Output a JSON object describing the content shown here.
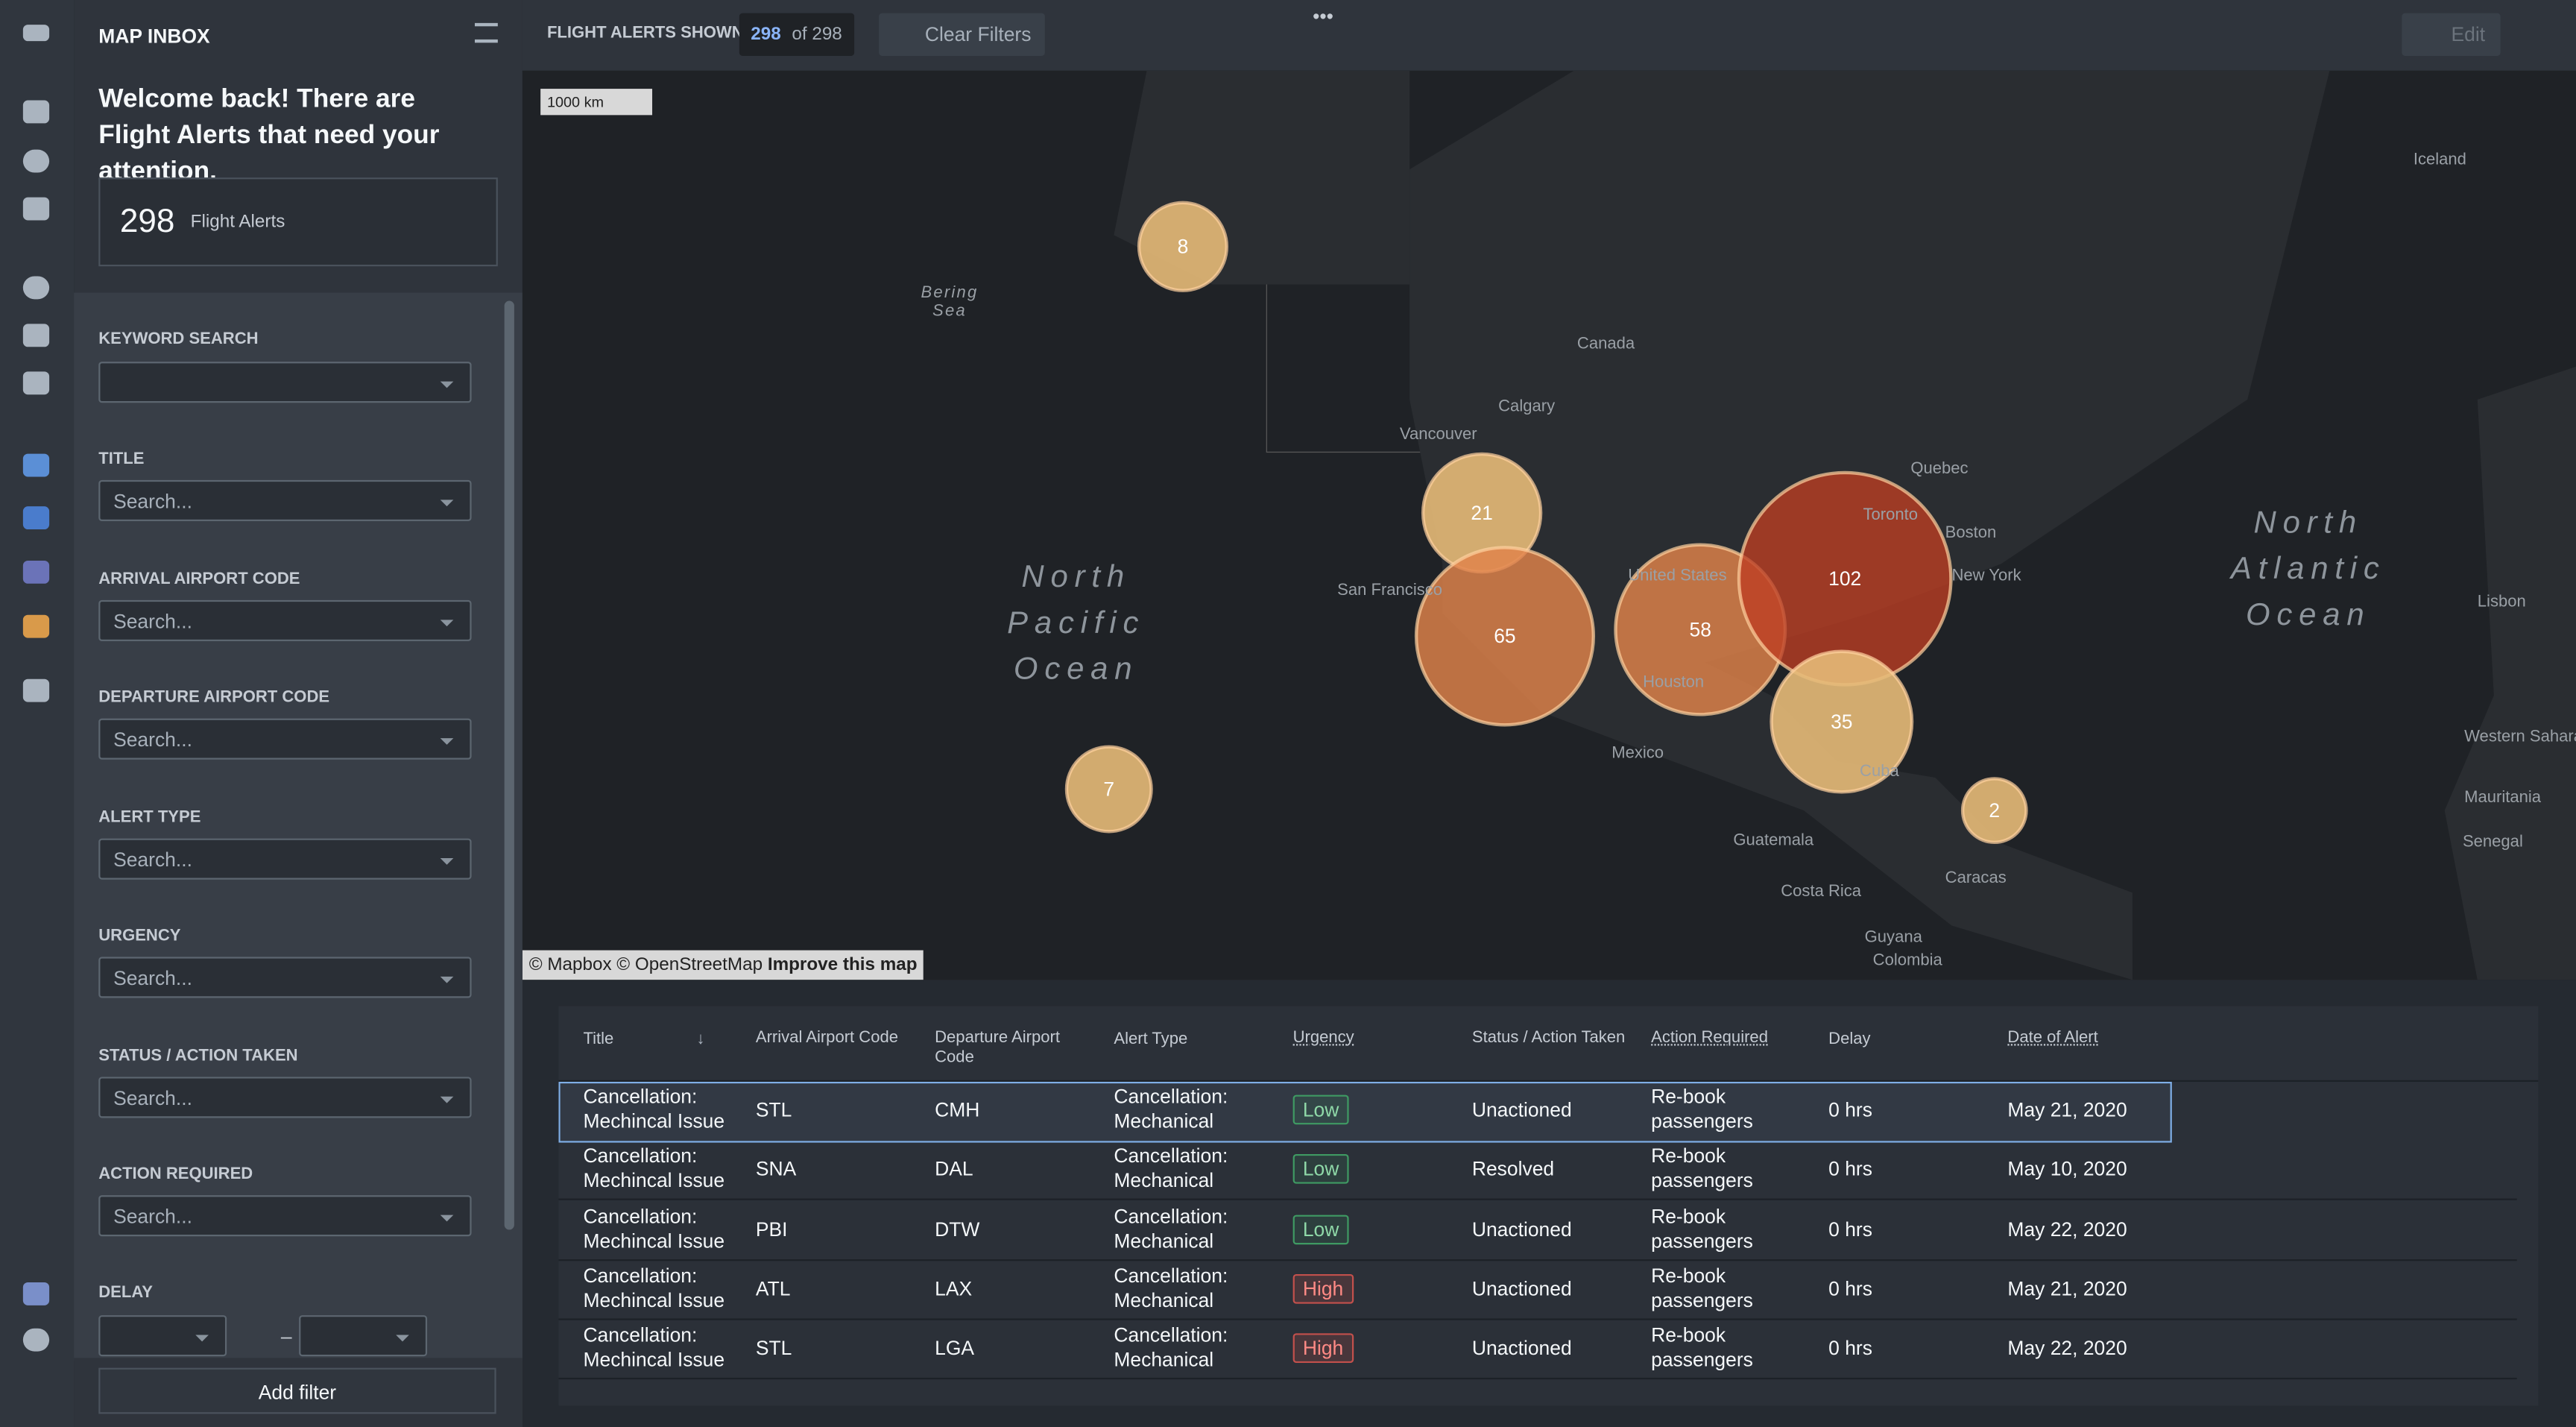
{
  "panel": {
    "title": "MAP INBOX",
    "welcome": "Welcome back! There are Flight Alerts that need your attention.",
    "count": 298,
    "count_label": "Flight Alerts",
    "keyword_label": "KEYWORD SEARCH",
    "filters": [
      {
        "label": "TITLE",
        "placeholder": "Search..."
      },
      {
        "label": "ARRIVAL AIRPORT CODE",
        "placeholder": "Search..."
      },
      {
        "label": "DEPARTURE AIRPORT CODE",
        "placeholder": "Search..."
      },
      {
        "label": "ALERT TYPE",
        "placeholder": "Search..."
      },
      {
        "label": "URGENCY",
        "placeholder": "Search..."
      },
      {
        "label": "STATUS / ACTION TAKEN",
        "placeholder": "Search..."
      },
      {
        "label": "ACTION REQUIRED",
        "placeholder": "Search..."
      }
    ],
    "delay_label": "DELAY",
    "range_dash": "–",
    "add_filter": "Add filter"
  },
  "toolbar": {
    "label": "FLIGHT ALERTS SHOWN",
    "shown": 298,
    "of": "of 298",
    "clear": "Clear Filters",
    "edit": "Edit"
  },
  "map": {
    "scale": "1000 km",
    "attribution": "© Mapbox © OpenStreetMap",
    "improve": "Improve this map",
    "labels": [
      "Bering Sea",
      "Canada",
      "Calgary",
      "Vancouver",
      "San Francisco",
      "United States",
      "Houston",
      "Mexico",
      "Toronto",
      "Quebec",
      "Boston",
      "New York",
      "North Pacific Ocean",
      "North Atlantic Ocean",
      "Iceland",
      "Lisbon",
      "Western Sahara",
      "Mauritania",
      "Senegal",
      "Guatemala",
      "Costa Rica",
      "Caracas",
      "Colombia",
      "Guyana",
      "Cuba"
    ],
    "clusters": [
      8,
      21,
      65,
      58,
      102,
      35,
      7,
      2
    ]
  },
  "table": {
    "columns": [
      "Title",
      "Arrival Airport Code",
      "Departure Airport Code",
      "Alert Type",
      "Urgency",
      "Status / Action Taken",
      "Action Required",
      "Delay",
      "Date of Alert"
    ],
    "rows": [
      [
        "Cancellation: Mechincal Issue",
        "STL",
        "CMH",
        "Cancellation: Mechanical",
        "Low",
        "Unactioned",
        "Re-book passengers",
        "0 hrs",
        "May 21, 2020"
      ],
      [
        "Cancellation: Mechincal Issue",
        "SNA",
        "DAL",
        "Cancellation: Mechanical",
        "Low",
        "Resolved",
        "Re-book passengers",
        "0 hrs",
        "May 10, 2020"
      ],
      [
        "Cancellation: Mechincal Issue",
        "PBI",
        "DTW",
        "Cancellation: Mechanical",
        "Low",
        "Unactioned",
        "Re-book passengers",
        "0 hrs",
        "May 22, 2020"
      ],
      [
        "Cancellation: Mechincal Issue",
        "ATL",
        "LAX",
        "Cancellation: Mechanical",
        "High",
        "Unactioned",
        "Re-book passengers",
        "0 hrs",
        "May 21, 2020"
      ],
      [
        "Cancellation: Mechincal Issue",
        "STL",
        "LGA",
        "Cancellation: Mechanical",
        "High",
        "Unactioned",
        "Re-book passengers",
        "0 hrs",
        "May 22, 2020"
      ]
    ]
  }
}
